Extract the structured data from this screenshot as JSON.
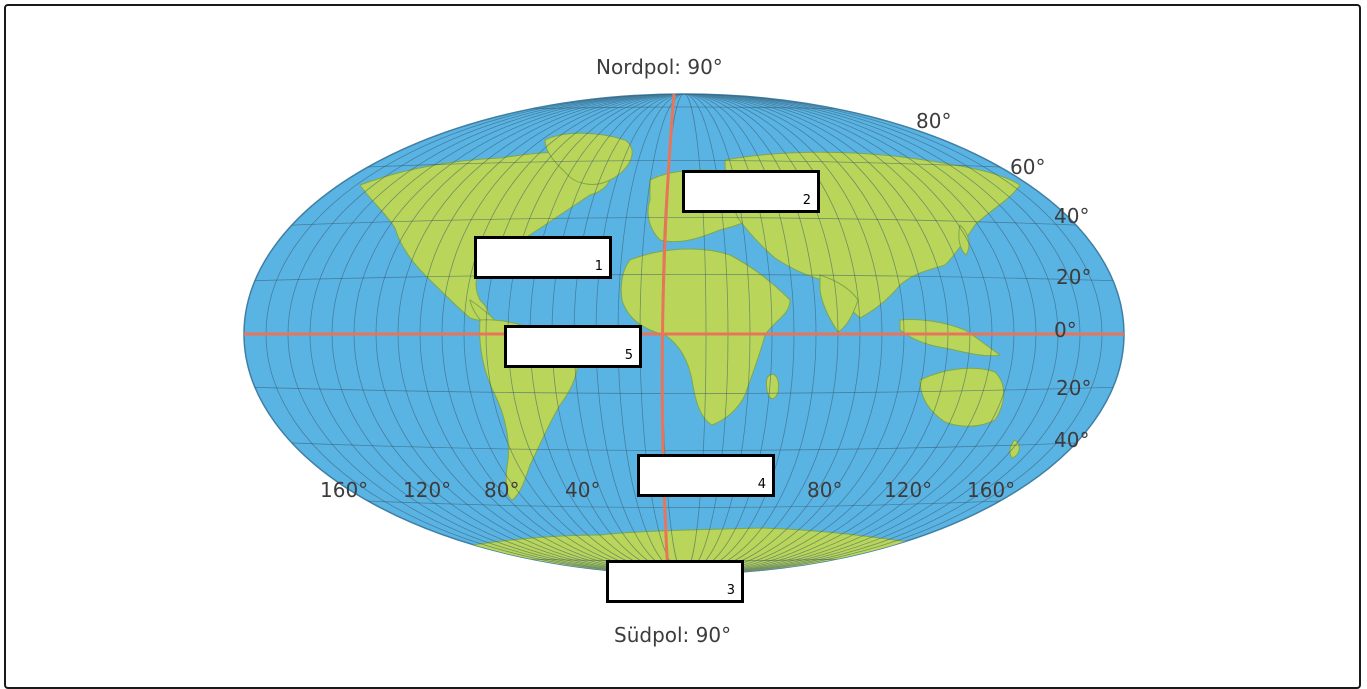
{
  "poles": {
    "north": "Nordpol: 90°",
    "south": "Südpol: 90°"
  },
  "latitude_labels": [
    "80°",
    "60°",
    "40°",
    "20°",
    "0°",
    "20°",
    "40°"
  ],
  "longitude_labels": [
    "160°",
    "120°",
    "80°",
    "40°",
    "80°",
    "120°",
    "160°"
  ],
  "answer_boxes": [
    {
      "number": "1"
    },
    {
      "number": "2"
    },
    {
      "number": "3"
    },
    {
      "number": "4"
    },
    {
      "number": "5"
    }
  ],
  "colors": {
    "ocean": "#5ab4e3",
    "land": "#b9d65a",
    "grid": "#35556b",
    "equator_meridian": "#e8755a"
  }
}
